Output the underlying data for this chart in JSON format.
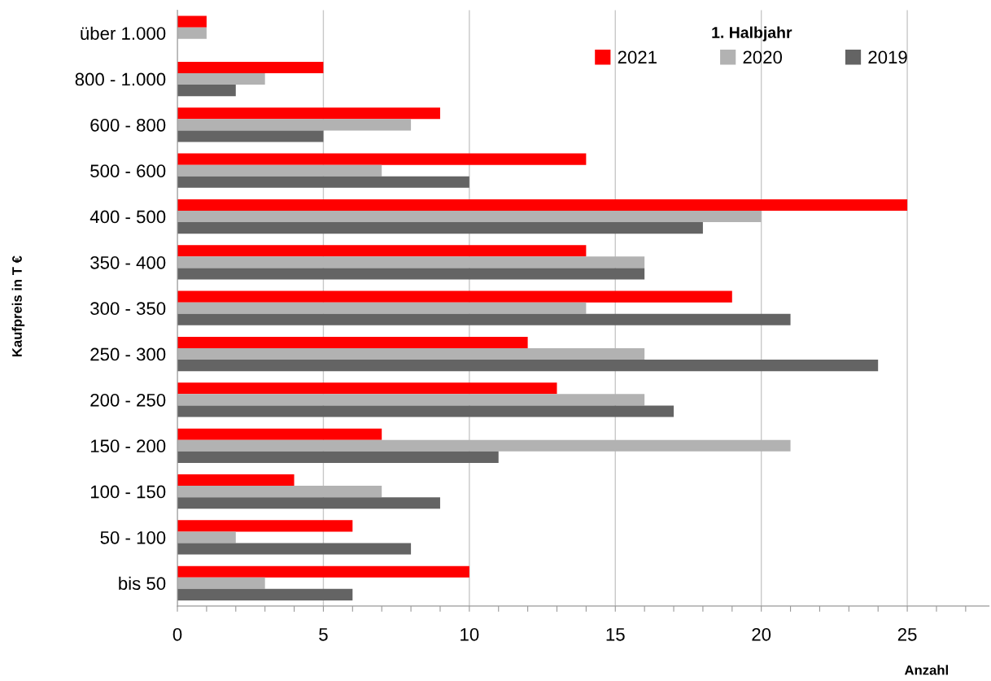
{
  "chart_data": {
    "type": "bar",
    "orientation": "horizontal",
    "xlabel": "Anzahl",
    "ylabel": "Kaufpreis in T €",
    "legend_title": "1. Halbjahr",
    "legend": "top right",
    "grid": "x",
    "categories": [
      "über 1.000",
      "800 - 1.000",
      "600 - 800",
      "500 - 600",
      "400 - 500",
      "350 - 400",
      "300 - 350",
      "250 - 300",
      "200 - 250",
      "150 - 200",
      "100 - 150",
      "50 - 100",
      "bis 50"
    ],
    "series": [
      {
        "name": "2021",
        "color": "#ff0000",
        "values": [
          1,
          5,
          9,
          14,
          25,
          14,
          19,
          12,
          13,
          7,
          4,
          6,
          10
        ]
      },
      {
        "name": "2020",
        "color": "#b2b2b2",
        "values": [
          1,
          3,
          8,
          7,
          20,
          16,
          14,
          16,
          16,
          21,
          7,
          2,
          3
        ]
      },
      {
        "name": "2019",
        "color": "#646464",
        "values": [
          0,
          2,
          5,
          10,
          18,
          16,
          21,
          24,
          17,
          11,
          9,
          8,
          6
        ]
      }
    ],
    "xlim": [
      0,
      27.8
    ],
    "xticks": [
      0,
      {
        "value": 1,
        "label": null
      },
      {
        "value": 2,
        "label": null
      },
      {
        "value": 3,
        "label": null
      },
      {
        "value": 4,
        "label": null
      },
      5,
      {
        "value": 6,
        "label": null
      },
      {
        "value": 7,
        "label": null
      },
      {
        "value": 8,
        "label": null
      },
      {
        "value": 9,
        "label": null
      },
      10,
      {
        "value": 11,
        "label": null
      },
      {
        "value": 12,
        "label": null
      },
      {
        "value": 13,
        "label": null
      },
      {
        "value": 14,
        "label": null
      },
      15,
      {
        "value": 16,
        "label": null
      },
      {
        "value": 17,
        "label": null
      },
      {
        "value": 18,
        "label": null
      },
      {
        "value": 19,
        "label": null
      },
      20,
      {
        "value": 21,
        "label": null
      },
      {
        "value": 22,
        "label": null
      },
      {
        "value": 23,
        "label": null
      },
      {
        "value": 24,
        "label": null
      },
      25,
      {
        "value": 26,
        "label": null
      },
      {
        "value": 27,
        "label": null
      }
    ]
  }
}
